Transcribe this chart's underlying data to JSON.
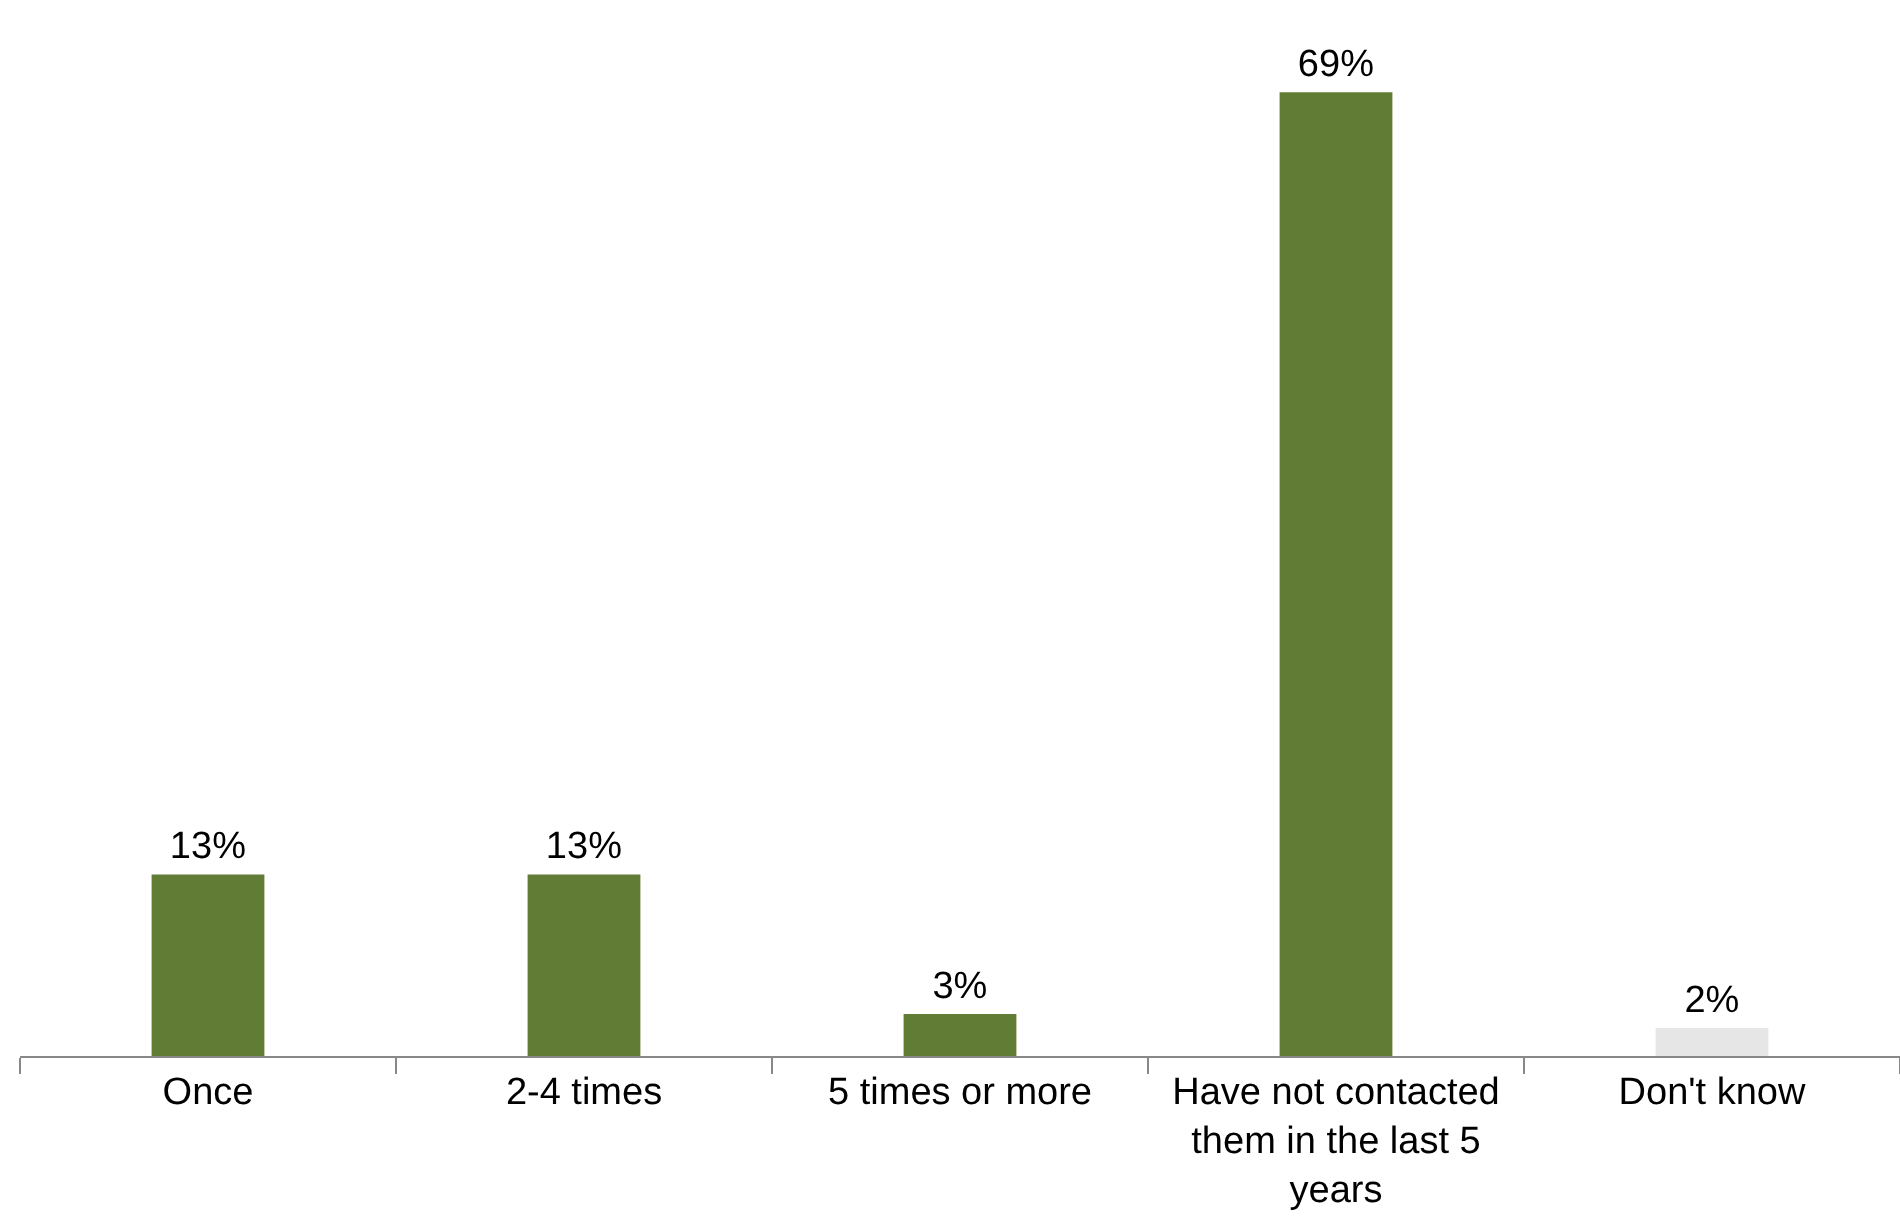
{
  "chart_data": {
    "type": "bar",
    "categories": [
      "Once",
      "2-4 times",
      "5 times or more",
      "Have not contacted them in the last 5 years",
      "Don't know"
    ],
    "values": [
      13,
      13,
      3,
      69,
      2
    ],
    "colors": [
      "#617d35",
      "#617d35",
      "#617d35",
      "#617d35",
      "#e6e6e6"
    ],
    "value_labels": [
      "13%",
      "13%",
      "3%",
      "69%",
      "2%"
    ],
    "grid": false,
    "legend": false
  }
}
